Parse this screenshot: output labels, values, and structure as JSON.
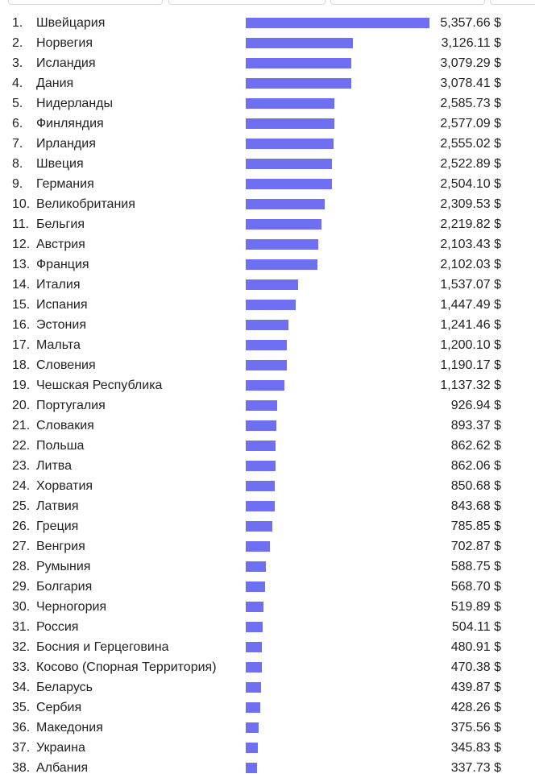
{
  "colors": {
    "bar": "#6f6ff2",
    "text": "#222222",
    "tab_border": "#d3dce6"
  },
  "chart_data": {
    "type": "bar",
    "orientation": "horizontal",
    "title": "",
    "xlabel": "",
    "ylabel": "",
    "currency": "$",
    "xlim": [
      0,
      5357.66
    ],
    "categories": [
      "Швейцария",
      "Норвегия",
      "Исландия",
      "Дания",
      "Нидерланды",
      "Финляндия",
      "Ирландия",
      "Швеция",
      "Германия",
      "Великобритания",
      "Бельгия",
      "Австрия",
      "Франция",
      "Италия",
      "Испания",
      "Эстония",
      "Мальта",
      "Словения",
      "Чешская Республика",
      "Португалия",
      "Словакия",
      "Польша",
      "Литва",
      "Хорватия",
      "Латвия",
      "Греция",
      "Венгрия",
      "Румыния",
      "Болгария",
      "Черногория",
      "Россия",
      "Босния и Герцеговина",
      "Косово (Спорная Территория)",
      "Беларусь",
      "Сербия",
      "Македония",
      "Украина",
      "Албания"
    ],
    "values": [
      5357.66,
      3126.11,
      3079.29,
      3078.41,
      2585.73,
      2577.09,
      2555.02,
      2522.89,
      2504.1,
      2309.53,
      2219.82,
      2103.43,
      2102.03,
      1537.07,
      1447.49,
      1241.46,
      1200.1,
      1190.17,
      1137.32,
      926.94,
      893.37,
      862.62,
      862.06,
      850.68,
      843.68,
      785.85,
      702.87,
      588.75,
      568.7,
      519.89,
      504.11,
      480.91,
      470.38,
      439.87,
      428.26,
      375.56,
      345.83,
      337.73
    ],
    "rows": [
      {
        "rank": "1.",
        "name": "Швейцария",
        "value": 5357.66,
        "label": "5,357.66 $"
      },
      {
        "rank": "2.",
        "name": "Норвегия",
        "value": 3126.11,
        "label": "3,126.11 $"
      },
      {
        "rank": "3.",
        "name": "Исландия",
        "value": 3079.29,
        "label": "3,079.29 $"
      },
      {
        "rank": "4.",
        "name": "Дания",
        "value": 3078.41,
        "label": "3,078.41 $"
      },
      {
        "rank": "5.",
        "name": "Нидерланды",
        "value": 2585.73,
        "label": "2,585.73 $"
      },
      {
        "rank": "6.",
        "name": "Финляндия",
        "value": 2577.09,
        "label": "2,577.09 $"
      },
      {
        "rank": "7.",
        "name": "Ирландия",
        "value": 2555.02,
        "label": "2,555.02 $"
      },
      {
        "rank": "8.",
        "name": "Швеция",
        "value": 2522.89,
        "label": "2,522.89 $"
      },
      {
        "rank": "9.",
        "name": "Германия",
        "value": 2504.1,
        "label": "2,504.10 $"
      },
      {
        "rank": "10.",
        "name": "Великобритания",
        "value": 2309.53,
        "label": "2,309.53 $"
      },
      {
        "rank": "11.",
        "name": "Бельгия",
        "value": 2219.82,
        "label": "2,219.82 $"
      },
      {
        "rank": "12.",
        "name": "Австрия",
        "value": 2103.43,
        "label": "2,103.43 $"
      },
      {
        "rank": "13.",
        "name": "Франция",
        "value": 2102.03,
        "label": "2,102.03 $"
      },
      {
        "rank": "14.",
        "name": "Италия",
        "value": 1537.07,
        "label": "1,537.07 $"
      },
      {
        "rank": "15.",
        "name": "Испания",
        "value": 1447.49,
        "label": "1,447.49 $"
      },
      {
        "rank": "16.",
        "name": "Эстония",
        "value": 1241.46,
        "label": "1,241.46 $"
      },
      {
        "rank": "17.",
        "name": "Мальта",
        "value": 1200.1,
        "label": "1,200.10 $"
      },
      {
        "rank": "18.",
        "name": "Словения",
        "value": 1190.17,
        "label": "1,190.17 $"
      },
      {
        "rank": "19.",
        "name": "Чешская Республика",
        "value": 1137.32,
        "label": "1,137.32 $"
      },
      {
        "rank": "20.",
        "name": "Португалия",
        "value": 926.94,
        "label": "926.94 $"
      },
      {
        "rank": "21.",
        "name": "Словакия",
        "value": 893.37,
        "label": "893.37 $"
      },
      {
        "rank": "22.",
        "name": "Польша",
        "value": 862.62,
        "label": "862.62 $"
      },
      {
        "rank": "23.",
        "name": "Литва",
        "value": 862.06,
        "label": "862.06 $"
      },
      {
        "rank": "24.",
        "name": "Хорватия",
        "value": 850.68,
        "label": "850.68 $"
      },
      {
        "rank": "25.",
        "name": "Латвия",
        "value": 843.68,
        "label": "843.68 $"
      },
      {
        "rank": "26.",
        "name": "Греция",
        "value": 785.85,
        "label": "785.85 $"
      },
      {
        "rank": "27.",
        "name": "Венгрия",
        "value": 702.87,
        "label": "702.87 $"
      },
      {
        "rank": "28.",
        "name": "Румыния",
        "value": 588.75,
        "label": "588.75 $"
      },
      {
        "rank": "29.",
        "name": "Болгария",
        "value": 568.7,
        "label": "568.70 $"
      },
      {
        "rank": "30.",
        "name": "Черногория",
        "value": 519.89,
        "label": "519.89 $"
      },
      {
        "rank": "31.",
        "name": "Россия",
        "value": 504.11,
        "label": "504.11 $"
      },
      {
        "rank": "32.",
        "name": "Босния и Герцеговина",
        "value": 480.91,
        "label": "480.91 $"
      },
      {
        "rank": "33.",
        "name": "Косово (Спорная Территория)",
        "value": 470.38,
        "label": "470.38 $"
      },
      {
        "rank": "34.",
        "name": "Беларусь",
        "value": 439.87,
        "label": "439.87 $"
      },
      {
        "rank": "35.",
        "name": "Сербия",
        "value": 428.26,
        "label": "428.26 $"
      },
      {
        "rank": "36.",
        "name": "Македония",
        "value": 375.56,
        "label": "375.56 $"
      },
      {
        "rank": "37.",
        "name": "Украина",
        "value": 345.83,
        "label": "345.83 $"
      },
      {
        "rank": "38.",
        "name": "Албания",
        "value": 337.73,
        "label": "337.73 $"
      }
    ]
  }
}
